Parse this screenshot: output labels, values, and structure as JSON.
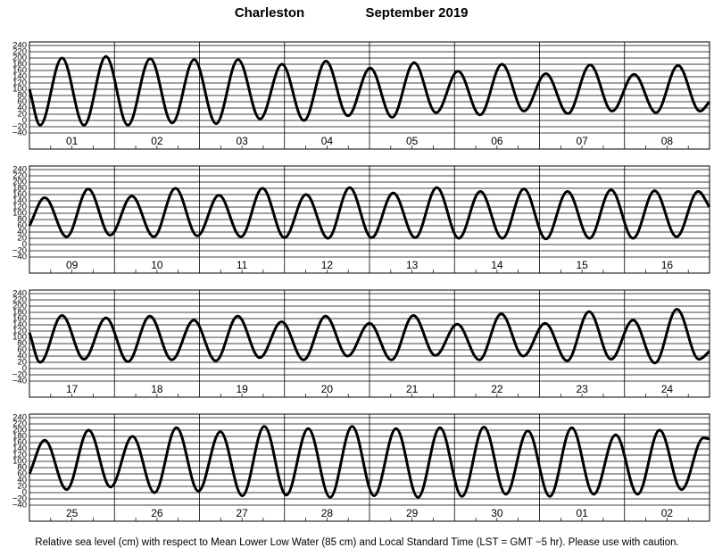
{
  "title": "Charleston",
  "subtitle": "September 2019",
  "footnote": "Relative sea level (cm) with respect to Mean Lower Low Water (85 cm) and Local Standard Time (LST = GMT −5 hr). Please use with caution.",
  "chart_data": [
    {
      "type": "line",
      "color": "#000000",
      "grid": true,
      "categories": [
        "01",
        "02",
        "03",
        "04",
        "05",
        "06",
        "07",
        "08"
      ],
      "xlim": [
        0,
        192
      ],
      "ylim": [
        -40,
        240
      ],
      "yticks": [
        {
          "value": -40,
          "label": "−40"
        },
        {
          "value": -20,
          "label": "−20"
        },
        0,
        20,
        40,
        60,
        80,
        100,
        120,
        140,
        160,
        180,
        200,
        220,
        240
      ],
      "x": [
        0,
        3.0,
        9.2,
        15.4,
        21.6,
        27.8,
        34.1,
        40.3,
        46.5,
        52.7,
        58.9,
        65.1,
        71.3,
        77.5,
        83.7,
        89.9,
        96.2,
        102.4,
        108.6,
        114.8,
        121.0,
        127.2,
        133.4,
        139.6,
        145.8,
        152.0,
        158.3,
        164.5,
        170.7,
        176.9,
        183.1,
        189.3,
        192
      ],
      "values": [
        100,
        -15,
        200,
        -15,
        205,
        -15,
        198,
        -8,
        195,
        -10,
        195,
        5,
        180,
        0,
        190,
        15,
        168,
        10,
        185,
        25,
        158,
        18,
        180,
        30,
        150,
        22,
        178,
        30,
        148,
        25,
        176,
        30,
        60
      ]
    },
    {
      "type": "line",
      "color": "#000000",
      "grid": true,
      "categories": [
        "09",
        "10",
        "11",
        "12",
        "13",
        "14",
        "15",
        "16"
      ],
      "xlim": [
        0,
        192
      ],
      "ylim": [
        -40,
        240
      ],
      "yticks": [
        {
          "value": -40,
          "label": "−40"
        },
        {
          "value": -20,
          "label": "−20"
        },
        0,
        20,
        40,
        60,
        80,
        100,
        120,
        140,
        160,
        180,
        200,
        220,
        240
      ],
      "x": [
        0,
        4.3,
        10.5,
        16.6,
        22.8,
        28.9,
        35.1,
        41.2,
        47.4,
        53.5,
        59.7,
        65.8,
        72.0,
        78.1,
        84.3,
        90.4,
        96.6,
        102.7,
        108.9,
        115.0,
        121.2,
        127.3,
        133.5,
        139.6,
        145.8,
        151.9,
        158.1,
        164.2,
        170.4,
        176.5,
        182.7,
        188.8,
        192
      ],
      "values": [
        60,
        150,
        25,
        178,
        30,
        155,
        25,
        180,
        28,
        158,
        25,
        180,
        22,
        160,
        20,
        182,
        22,
        165,
        22,
        182,
        20,
        170,
        20,
        178,
        18,
        170,
        20,
        175,
        20,
        172,
        25,
        170,
        120
      ]
    },
    {
      "type": "line",
      "color": "#000000",
      "grid": true,
      "categories": [
        "17",
        "18",
        "19",
        "20",
        "21",
        "22",
        "23",
        "24"
      ],
      "xlim": [
        0,
        192
      ],
      "ylim": [
        -40,
        240
      ],
      "yticks": [
        {
          "value": -40,
          "label": "−40"
        },
        {
          "value": -20,
          "label": "−20"
        },
        0,
        20,
        40,
        60,
        80,
        100,
        120,
        140,
        160,
        180,
        200,
        220,
        240
      ],
      "x": [
        0,
        3.0,
        9.2,
        15.4,
        21.6,
        27.8,
        34.0,
        40.2,
        46.4,
        52.6,
        58.8,
        65.0,
        71.2,
        77.4,
        83.6,
        89.8,
        96.0,
        102.2,
        108.4,
        114.6,
        120.8,
        127.0,
        133.2,
        139.4,
        145.6,
        151.8,
        158.0,
        164.2,
        170.4,
        176.6,
        182.8,
        189.0,
        192
      ],
      "values": [
        115,
        20,
        170,
        30,
        162,
        22,
        168,
        28,
        155,
        25,
        168,
        35,
        150,
        28,
        168,
        40,
        145,
        28,
        170,
        42,
        142,
        28,
        175,
        40,
        145,
        25,
        182,
        30,
        155,
        18,
        190,
        30,
        55
      ]
    },
    {
      "type": "line",
      "color": "#000000",
      "grid": true,
      "categories": [
        "25",
        "26",
        "27",
        "28",
        "29",
        "30",
        "01",
        "02"
      ],
      "xlim": [
        0,
        192
      ],
      "ylim": [
        -40,
        240
      ],
      "yticks": [
        {
          "value": -40,
          "label": "−40"
        },
        {
          "value": -20,
          "label": "−20"
        },
        0,
        20,
        40,
        60,
        80,
        100,
        120,
        140,
        160,
        180,
        200,
        220,
        240
      ],
      "x": [
        0,
        4.3,
        10.5,
        16.7,
        22.9,
        29.1,
        35.3,
        41.5,
        47.7,
        53.9,
        60.1,
        66.3,
        72.5,
        78.7,
        84.9,
        91.1,
        97.3,
        103.5,
        109.7,
        115.9,
        122.1,
        128.3,
        134.5,
        140.7,
        146.9,
        153.1,
        159.3,
        165.5,
        171.7,
        177.9,
        184.1,
        190.3,
        192
      ],
      "values": [
        60,
        168,
        10,
        200,
        18,
        180,
        0,
        208,
        5,
        195,
        -10,
        212,
        -8,
        205,
        -15,
        212,
        -10,
        205,
        -15,
        208,
        -12,
        210,
        -5,
        198,
        -12,
        208,
        -5,
        185,
        -5,
        200,
        10,
        175,
        172
      ]
    }
  ]
}
